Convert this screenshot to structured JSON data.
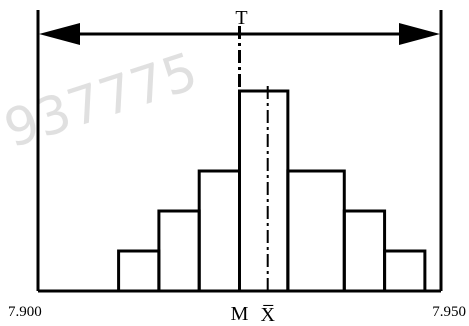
{
  "chart_data": {
    "type": "bar",
    "title": "",
    "xlabel": "",
    "ylabel": "",
    "xlim": [
      7.9,
      7.95
    ],
    "ylim": [
      0,
      8
    ],
    "bins": [
      {
        "x0": 7.91,
        "x1": 7.915,
        "value": 1
      },
      {
        "x0": 7.915,
        "x1": 7.92,
        "value": 2
      },
      {
        "x0": 7.92,
        "x1": 7.925,
        "value": 3
      },
      {
        "x0": 7.925,
        "x1": 7.931,
        "value": 5
      },
      {
        "x0": 7.931,
        "x1": 7.938,
        "value": 3
      },
      {
        "x0": 7.938,
        "x1": 7.943,
        "value": 2
      },
      {
        "x0": 7.943,
        "x1": 7.948,
        "value": 1
      }
    ],
    "tolerance": {
      "label": "T",
      "lower": 7.9,
      "upper": 7.95,
      "lower_label": "7.900",
      "upper_label": "7.950"
    },
    "center": {
      "label": "M",
      "value": 7.925
    },
    "mean": {
      "label": "X̅",
      "value": 7.9285
    },
    "grid": false,
    "legend": "none"
  },
  "watermark": "937775"
}
